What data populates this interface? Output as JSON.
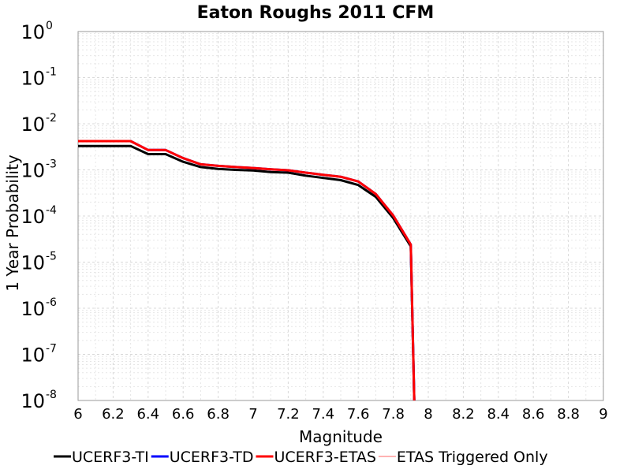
{
  "chart_data": {
    "type": "line",
    "title": "Eaton Roughs 2011 CFM",
    "xlabel": "Magnitude",
    "ylabel": "1 Year Probability",
    "xlim": [
      6,
      9
    ],
    "ylim": [
      1e-08,
      1
    ],
    "y_scale": "log",
    "grid": true,
    "legend_position": "bottom",
    "x_ticks": [
      "6",
      "6.2",
      "6.4",
      "6.6",
      "6.8",
      "7",
      "7.2",
      "7.4",
      "7.6",
      "7.8",
      "8",
      "8.2",
      "8.4",
      "8.6",
      "8.8",
      "9"
    ],
    "y_ticks": [
      {
        "base": "10",
        "exp": "0"
      },
      {
        "base": "10",
        "exp": "-1"
      },
      {
        "base": "10",
        "exp": "-2"
      },
      {
        "base": "10",
        "exp": "-3"
      },
      {
        "base": "10",
        "exp": "-4"
      },
      {
        "base": "10",
        "exp": "-5"
      },
      {
        "base": "10",
        "exp": "-6"
      },
      {
        "base": "10",
        "exp": "-7"
      },
      {
        "base": "10",
        "exp": "-8"
      }
    ],
    "series": [
      {
        "name": "UCERF3-TI",
        "color": "#000000",
        "x": [
          6.0,
          6.1,
          6.2,
          6.3,
          6.4,
          6.5,
          6.6,
          6.7,
          6.8,
          6.9,
          7.0,
          7.1,
          7.2,
          7.3,
          7.4,
          7.5,
          7.6,
          7.7,
          7.8,
          7.9,
          7.92
        ],
        "y": [
          0.0033,
          0.0033,
          0.0033,
          0.0033,
          0.0022,
          0.0022,
          0.0015,
          0.00115,
          0.00105,
          0.001,
          0.00097,
          0.0009,
          0.00087,
          0.00075,
          0.00067,
          0.0006,
          0.00047,
          0.00026,
          9e-05,
          2.2e-05,
          1e-08
        ]
      },
      {
        "name": "UCERF3-TD",
        "color": "#0000ff",
        "x": [
          6.0,
          6.1,
          6.2,
          6.3,
          6.4,
          6.5,
          6.6,
          6.7,
          6.8,
          6.9,
          7.0,
          7.1,
          7.2,
          7.3,
          7.4,
          7.5,
          7.6,
          7.7,
          7.8,
          7.9,
          7.92
        ],
        "y": [
          0.0042,
          0.0042,
          0.0042,
          0.0042,
          0.0027,
          0.0027,
          0.0018,
          0.00132,
          0.00122,
          0.00115,
          0.0011,
          0.00103,
          0.00098,
          0.00087,
          0.00078,
          0.00071,
          0.00056,
          0.0003,
          0.000102,
          2.4e-05,
          1e-08
        ]
      },
      {
        "name": "UCERF3-ETAS",
        "color": "#ff0000",
        "x": [
          6.0,
          6.1,
          6.2,
          6.3,
          6.4,
          6.5,
          6.6,
          6.7,
          6.8,
          6.9,
          7.0,
          7.1,
          7.2,
          7.3,
          7.4,
          7.5,
          7.6,
          7.7,
          7.8,
          7.9,
          7.92
        ],
        "y": [
          0.0042,
          0.0042,
          0.0042,
          0.0042,
          0.0027,
          0.0027,
          0.0018,
          0.00132,
          0.00122,
          0.00115,
          0.0011,
          0.00103,
          0.00098,
          0.00087,
          0.00078,
          0.00071,
          0.00056,
          0.0003,
          0.000102,
          2.4e-05,
          1e-08
        ]
      },
      {
        "name": "ETAS Triggered Only",
        "color": "#ff6666",
        "x": [],
        "y": []
      }
    ]
  }
}
